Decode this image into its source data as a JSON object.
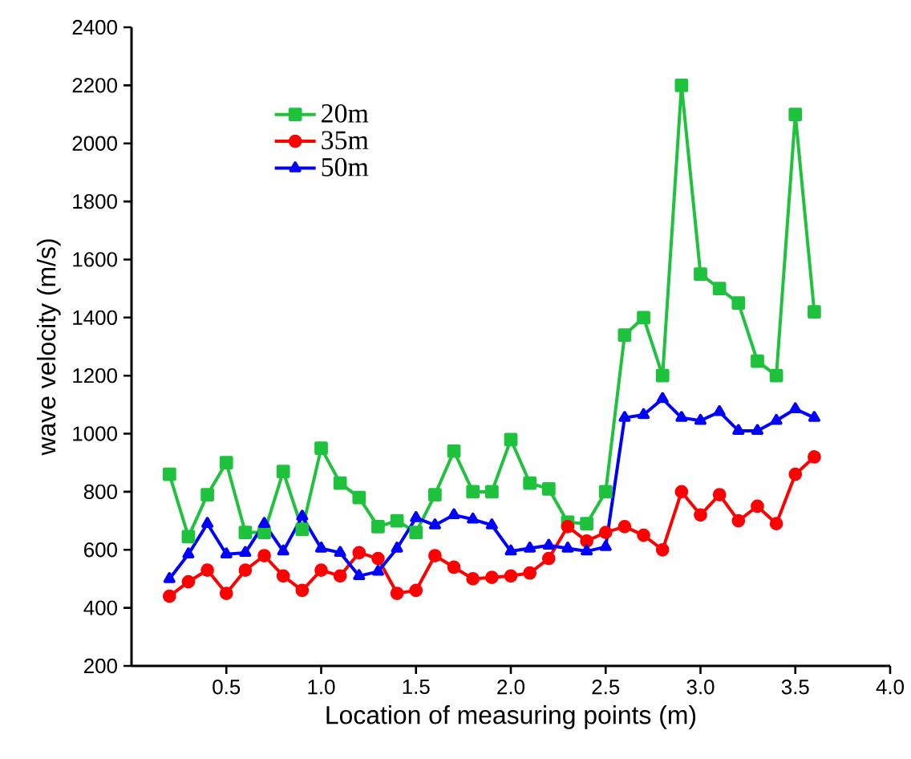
{
  "chart_data": {
    "type": "line",
    "xlabel": "Location of measuring points (m)",
    "ylabel": "wave velocity (m/s)",
    "x": [
      0.2,
      0.3,
      0.4,
      0.5,
      0.6,
      0.7,
      0.8,
      0.9,
      1.0,
      1.1,
      1.2,
      1.3,
      1.4,
      1.5,
      1.6,
      1.7,
      1.8,
      1.9,
      2.0,
      2.1,
      2.2,
      2.3,
      2.4,
      2.5,
      2.6,
      2.7,
      2.8,
      2.9,
      3.0,
      3.1,
      3.2,
      3.3,
      3.4,
      3.5,
      3.6
    ],
    "series": [
      {
        "name": "20m",
        "color": "#1ec23c",
        "marker": "square",
        "values": [
          860,
          645,
          790,
          900,
          660,
          660,
          870,
          670,
          950,
          830,
          780,
          680,
          700,
          660,
          790,
          940,
          800,
          800,
          980,
          830,
          810,
          695,
          690,
          800,
          1340,
          1400,
          1200,
          2200,
          1550,
          1500,
          1450,
          1250,
          1200,
          2100,
          1420
        ]
      },
      {
        "name": "35m",
        "color": "#ff0000",
        "marker": "circle",
        "values": [
          440,
          490,
          530,
          450,
          530,
          580,
          510,
          460,
          530,
          510,
          590,
          570,
          450,
          460,
          580,
          540,
          500,
          505,
          510,
          520,
          570,
          680,
          630,
          660,
          680,
          650,
          600,
          800,
          720,
          790,
          700,
          750,
          690,
          860,
          920
        ]
      },
      {
        "name": "50m",
        "color": "#0000ff",
        "marker": "triangle",
        "values": [
          500,
          585,
          690,
          585,
          590,
          690,
          595,
          715,
          605,
          590,
          510,
          525,
          605,
          710,
          685,
          720,
          705,
          685,
          595,
          605,
          615,
          605,
          595,
          610,
          1055,
          1065,
          1120,
          1055,
          1045,
          1075,
          1010,
          1010,
          1045,
          1085,
          1055
        ]
      }
    ],
    "xlim": [
      0,
      4
    ],
    "xticks": [
      0.5,
      {
        "value": 1,
        "label": "1.0"
      },
      1.5,
      {
        "value": 2,
        "label": "2.0"
      },
      2.5,
      {
        "value": 3,
        "label": "3.0"
      },
      3.5,
      {
        "value": 4,
        "label": "4.0"
      }
    ],
    "ylim": [
      200,
      2400
    ],
    "yticks": [
      200,
      400,
      600,
      800,
      1000,
      1200,
      1400,
      1600,
      1800,
      2000,
      2200,
      2400
    ],
    "grid": false,
    "legend": "top left",
    "line_style": "solid"
  }
}
